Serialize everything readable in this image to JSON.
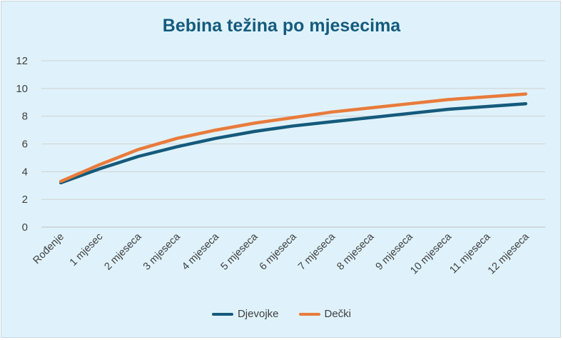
{
  "chart_data": {
    "type": "line",
    "title": "Bebina težina po mjesecima",
    "xlabel": "",
    "ylabel": "",
    "categories": [
      "Rođenje",
      "1 mjesec",
      "2 mjeseca",
      "3 mjeseca",
      "4 mjeseca",
      "5 mjeseca",
      "6 mjeseca",
      "7 mjeseca",
      "8 mjeseca",
      "9 mjeseca",
      "10 mjeseca",
      "11 mjeseca",
      "12 mjeseca"
    ],
    "ylim": [
      0,
      12
    ],
    "yticks": [
      0,
      2,
      4,
      6,
      8,
      10,
      12
    ],
    "grid": true,
    "legend_position": "bottom",
    "series": [
      {
        "name": "Djevojke",
        "color": "#155a7c",
        "values": [
          3.2,
          4.2,
          5.1,
          5.8,
          6.4,
          6.9,
          7.3,
          7.6,
          7.9,
          8.2,
          8.5,
          8.7,
          8.9
        ]
      },
      {
        "name": "Dečki",
        "color": "#e97b3b",
        "values": [
          3.3,
          4.5,
          5.6,
          6.4,
          7.0,
          7.5,
          7.9,
          8.3,
          8.6,
          8.9,
          9.2,
          9.4,
          9.6
        ]
      }
    ]
  }
}
